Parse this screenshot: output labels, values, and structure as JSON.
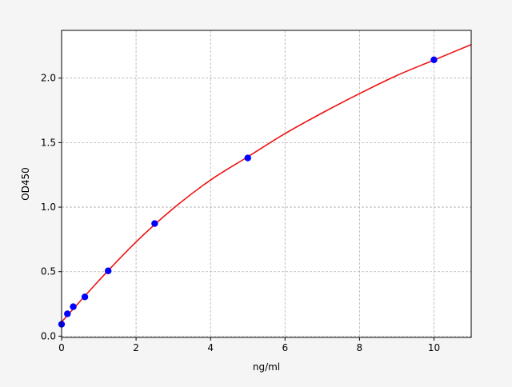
{
  "chart_data": {
    "type": "scatter",
    "title": "",
    "xlabel": "ng/ml",
    "ylabel": "OD450",
    "xlim": [
      0,
      11
    ],
    "ylim": [
      -0.01,
      2.37
    ],
    "xticks": [
      0,
      2,
      4,
      6,
      8,
      10
    ],
    "yticks": [
      0.0,
      0.5,
      1.0,
      1.5,
      2.0
    ],
    "xtick_labels": [
      "0",
      "2",
      "4",
      "6",
      "8",
      "10"
    ],
    "ytick_labels": [
      "0.0",
      "0.5",
      "1.0",
      "1.5",
      "2.0"
    ],
    "grid": true,
    "series": [
      {
        "kind": "points",
        "color": "#0000ff",
        "x": [
          0,
          0.156,
          0.3125,
          0.625,
          1.25,
          2.5,
          5,
          10
        ],
        "y": [
          0.092,
          0.173,
          0.228,
          0.304,
          0.506,
          0.873,
          1.381,
          2.142
        ]
      },
      {
        "kind": "fit-curve",
        "color": "#ee1111",
        "x": [
          0,
          1,
          2,
          3,
          4,
          5,
          6,
          7,
          8,
          9,
          10,
          11
        ],
        "y": [
          0.11,
          0.43,
          0.73,
          0.99,
          1.21,
          1.39,
          1.57,
          1.73,
          1.88,
          2.02,
          2.14,
          2.26
        ]
      }
    ]
  }
}
